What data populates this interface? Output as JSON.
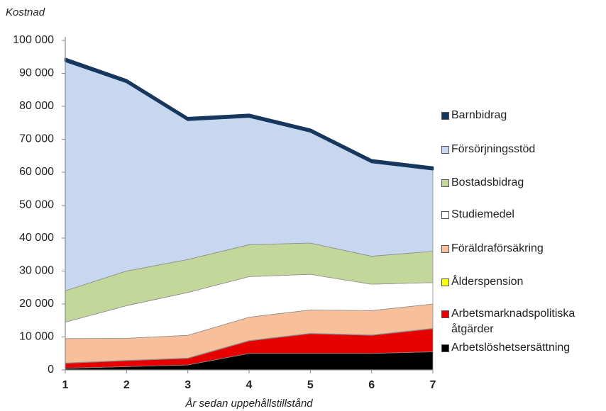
{
  "chart_data": {
    "type": "stacked_area",
    "ylabel": "Kostnad",
    "xlabel": "År sedan uppehållstillstånd",
    "x": [
      1,
      2,
      3,
      4,
      5,
      6,
      7
    ],
    "xlim": [
      1,
      7
    ],
    "xticks": [
      1,
      2,
      3,
      4,
      5,
      6,
      7
    ],
    "ylim": [
      0,
      100000
    ],
    "yticks": [
      0,
      {
        "value": 10000,
        "label": "10 000"
      },
      {
        "value": 20000,
        "label": "20 000"
      },
      {
        "value": 30000,
        "label": "30 000"
      },
      {
        "value": 40000,
        "label": "40 000"
      },
      {
        "value": 50000,
        "label": "50 000"
      },
      {
        "value": 60000,
        "label": "60 000"
      },
      {
        "value": 70000,
        "label": "70 000"
      },
      {
        "value": 80000,
        "label": "80 000"
      },
      {
        "value": 90000,
        "label": "90 000"
      },
      {
        "value": 100000,
        "label": "100 000"
      }
    ],
    "series": [
      {
        "name": "Arbetslöshetsersättning",
        "color": "#000000",
        "values": [
          500,
          1000,
          1500,
          5000,
          5000,
          5000,
          5500
        ]
      },
      {
        "name": "Arbetsmarknadspolitiska åtgärder",
        "color": "#e60000",
        "values": [
          1500,
          1800,
          2000,
          3800,
          6000,
          5500,
          7000
        ]
      },
      {
        "name": "Ålderspension",
        "color": "#ffff00",
        "values": [
          100,
          100,
          100,
          100,
          100,
          100,
          100
        ]
      },
      {
        "name": "Föräldraförsäkring",
        "color": "#f8c09a",
        "values": [
          7400,
          6700,
          6900,
          7100,
          7100,
          7400,
          7400
        ]
      },
      {
        "name": "Studiemedel",
        "color": "#ffffff",
        "values": [
          5000,
          9900,
          13000,
          12300,
          10800,
          8000,
          6500
        ]
      },
      {
        "name": "Bostadsbidrag",
        "color": "#c4d79b",
        "values": [
          9500,
          10500,
          10000,
          9700,
          9500,
          8500,
          9500
        ]
      },
      {
        "name": "Försörjningsstöd",
        "color": "#c6d7ef",
        "values": [
          69700,
          57300,
          42300,
          38800,
          33800,
          28500,
          24800
        ]
      },
      {
        "name": "Barnbidrag",
        "color": "#17375e",
        "values": [
          800,
          700,
          700,
          700,
          700,
          700,
          700
        ]
      }
    ]
  }
}
